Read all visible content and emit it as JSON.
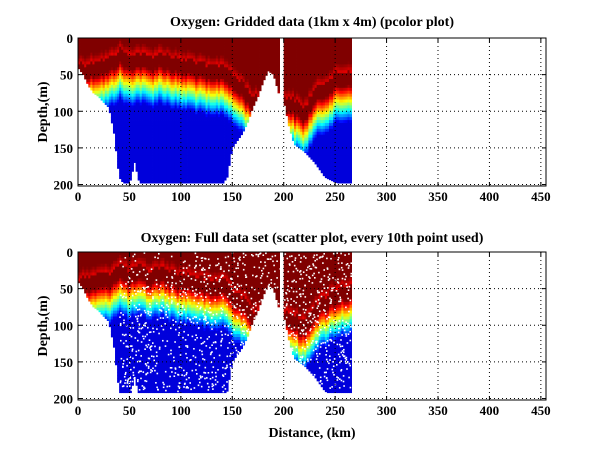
{
  "chart_data": [
    {
      "type": "heatmap",
      "title": "Oxygen: Gridded data (1km x 4m) (pcolor plot)",
      "xlabel": "",
      "ylabel": "Depth,(m)",
      "xlim": [
        0,
        455
      ],
      "ylim": [
        0,
        202
      ],
      "y_reversed": true,
      "grid": true,
      "colormap": "jet",
      "xticks": [
        "0",
        "50",
        "100",
        "150",
        "200",
        "250",
        "300",
        "350",
        "400",
        "450"
      ],
      "yticks": [
        "0",
        "50",
        "100",
        "150",
        "200"
      ],
      "max_depth_cap": 198,
      "profiles": {
        "distance_km": [
          0,
          5,
          10,
          15,
          20,
          25,
          30,
          35,
          40,
          45,
          50,
          55,
          60,
          70,
          80,
          90,
          100,
          110,
          120,
          130,
          140,
          145,
          150,
          155,
          160,
          165,
          170,
          175,
          180,
          185,
          190,
          195,
          200,
          205,
          210,
          215,
          220,
          230,
          240,
          250,
          260,
          265
        ],
        "bottom_depth_m": [
          40,
          50,
          65,
          75,
          80,
          88,
          95,
          130,
          190,
          200,
          200,
          170,
          200,
          200,
          200,
          200,
          200,
          200,
          200,
          200,
          200,
          190,
          150,
          140,
          130,
          115,
          95,
          80,
          60,
          45,
          50,
          75,
          85,
          120,
          145,
          150,
          155,
          170,
          190,
          197,
          200,
          200
        ],
        "oxycline_depth_m": [
          75,
          75,
          75,
          72,
          70,
          70,
          68,
          62,
          55,
          60,
          65,
          60,
          60,
          65,
          60,
          65,
          70,
          70,
          75,
          80,
          75,
          80,
          90,
          95,
          100,
          110,
          120,
          120,
          120,
          120,
          120,
          120,
          120,
          120,
          125,
          130,
          135,
          110,
          100,
          90,
          85,
          85
        ]
      },
      "gaps_km": [
        [
          196,
          199
        ]
      ]
    },
    {
      "type": "scatter",
      "title": "Oxygen: Full data set (scatter plot, every 10th point used)",
      "xlabel": "Distance, (km)",
      "ylabel": "Depth,(m)",
      "xlim": [
        0,
        455
      ],
      "ylim": [
        0,
        202
      ],
      "y_reversed": true,
      "grid": true,
      "colormap": "jet",
      "xticks": [
        "0",
        "50",
        "100",
        "150",
        "200",
        "250",
        "300",
        "350",
        "400",
        "450"
      ],
      "yticks": [
        "0",
        "50",
        "100",
        "150",
        "200"
      ],
      "max_depth_cap": 192,
      "sampling": "every 10th point",
      "profiles_same_as_panel": 0
    }
  ]
}
